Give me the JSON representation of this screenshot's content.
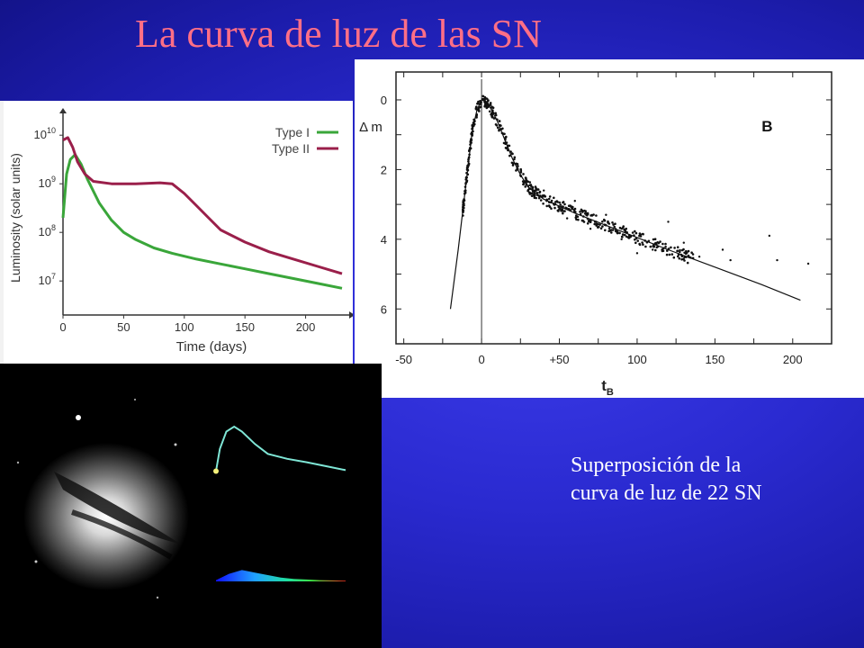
{
  "slide": {
    "title": "La curva de luz de las SN",
    "caption_line1": "Superposición de la",
    "caption_line2": "curva de luz de 22 SN"
  },
  "colors": {
    "background": "#2a2ad0",
    "title": "#ff6f86",
    "type_i": "#3aa63a",
    "type_ii": "#9a1f4a",
    "anim_curve": "#7fe6d6",
    "anim_point": "#f4f07a"
  },
  "chart_data": [
    {
      "type": "line",
      "xlabel": "Time (days)",
      "ylabel": "Luminosity (solar units)",
      "xticks": [
        "0",
        "50",
        "100",
        "150",
        "200"
      ],
      "yticks": [
        "10^7",
        "10^8",
        "10^9",
        "10^10"
      ],
      "xlim": [
        0,
        230
      ],
      "ylim_log10": [
        6.3,
        10.3
      ],
      "legend_position": "top-right",
      "series": [
        {
          "name": "Type I",
          "color": "#3aa63a",
          "x": [
            0,
            3,
            6,
            10,
            15,
            20,
            30,
            40,
            50,
            60,
            75,
            90,
            110,
            130,
            150,
            170,
            190,
            210,
            230
          ],
          "log10_y": [
            8.3,
            9.2,
            9.5,
            9.6,
            9.4,
            9.1,
            8.6,
            8.25,
            8.0,
            7.85,
            7.68,
            7.57,
            7.45,
            7.35,
            7.25,
            7.15,
            7.05,
            6.95,
            6.85
          ]
        },
        {
          "name": "Type II",
          "color": "#9a1f4a",
          "x": [
            0,
            4,
            8,
            12,
            18,
            25,
            40,
            60,
            80,
            90,
            100,
            110,
            120,
            130,
            150,
            170,
            190,
            210,
            230
          ],
          "log10_y": [
            9.9,
            9.95,
            9.75,
            9.45,
            9.2,
            9.05,
            9.0,
            9.0,
            9.02,
            9.0,
            8.8,
            8.55,
            8.3,
            8.05,
            7.8,
            7.6,
            7.45,
            7.3,
            7.15
          ]
        }
      ]
    },
    {
      "type": "scatter",
      "xlabel": "t_B",
      "ylabel": "Δ m",
      "annotation": "B",
      "xticks": [
        "-50",
        "0",
        "+50",
        "100",
        "150",
        "200"
      ],
      "yticks": [
        "0",
        "2",
        "4",
        "6"
      ],
      "xlim": [
        -55,
        225
      ],
      "ylim": [
        -0.8,
        7.0
      ],
      "y_inverted": true,
      "template": {
        "x": [
          -20,
          -15,
          -10,
          -6,
          -3,
          0,
          3,
          6,
          10,
          15,
          20,
          25,
          30,
          40,
          50,
          60,
          80,
          100,
          120,
          150,
          180,
          205
        ],
        "y": [
          6.0,
          4.3,
          2.4,
          0.9,
          0.3,
          0.0,
          0.05,
          0.25,
          0.6,
          1.15,
          1.7,
          2.15,
          2.5,
          2.85,
          3.05,
          3.25,
          3.6,
          3.95,
          4.3,
          4.8,
          5.3,
          5.75
        ]
      },
      "outliers": {
        "x": [
          40,
          55,
          60,
          70,
          80,
          90,
          95,
          100,
          110,
          120,
          130,
          140,
          155,
          160,
          185,
          190,
          210
        ],
        "y": [
          2.6,
          3.4,
          2.9,
          3.7,
          3.3,
          4.0,
          3.9,
          4.4,
          4.3,
          3.5,
          4.1,
          4.5,
          4.3,
          4.6,
          3.9,
          4.6,
          4.7
        ]
      }
    },
    {
      "type": "line",
      "series": [
        {
          "name": "",
          "x": [
            0,
            3,
            8,
            14,
            20,
            30,
            40,
            55,
            70,
            85,
            100
          ],
          "y": [
            0.1,
            0.55,
            0.9,
            1.0,
            0.9,
            0.65,
            0.45,
            0.35,
            0.28,
            0.2,
            0.12
          ]
        }
      ],
      "spectrum": {
        "x": [
          0,
          10,
          20,
          30,
          40,
          50,
          60,
          70,
          80,
          90,
          100
        ],
        "y": [
          0.1,
          0.6,
          0.9,
          0.7,
          0.5,
          0.3,
          0.2,
          0.15,
          0.1,
          0.08,
          0.05
        ]
      }
    }
  ]
}
